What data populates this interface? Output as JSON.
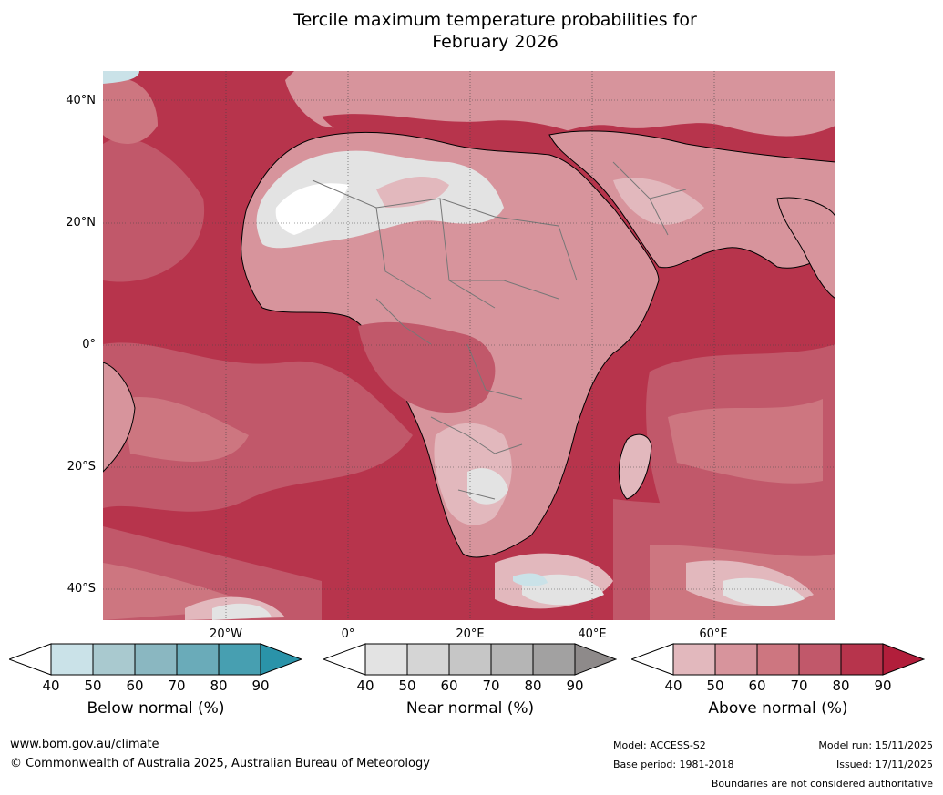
{
  "title": {
    "line1": "Tercile maximum temperature probabilities for",
    "line2": "February 2026"
  },
  "axes": {
    "lat_labels": [
      "40°N",
      "20°N",
      "0°",
      "20°S",
      "40°S"
    ],
    "lon_labels": [
      "20°W",
      "0°",
      "20°E",
      "40°E",
      "60°E"
    ]
  },
  "colorbars": [
    {
      "label": "Below normal (%)",
      "ticks": [
        "40",
        "50",
        "60",
        "70",
        "80",
        "90"
      ],
      "colors": [
        "#ffffff",
        "#cae2e8",
        "#a9c9cf",
        "#8ab7c1",
        "#6aabb9",
        "#479fb1",
        "#2a93a9"
      ]
    },
    {
      "label": "Near normal (%)",
      "ticks": [
        "40",
        "50",
        "60",
        "70",
        "80",
        "90"
      ],
      "colors": [
        "#ffffff",
        "#e3e3e3",
        "#d5d5d5",
        "#c6c6c6",
        "#b5b5b5",
        "#a2a1a1",
        "#8e8a8a"
      ]
    },
    {
      "label": "Above normal (%)",
      "ticks": [
        "40",
        "50",
        "60",
        "70",
        "80",
        "90"
      ],
      "colors": [
        "#ffffff",
        "#e2b8bd",
        "#d7949c",
        "#cd7680",
        "#c1586a",
        "#b7344c",
        "#b21e3b"
      ]
    }
  ],
  "footer": {
    "website": "www.bom.gov.au/climate",
    "copyright": "© Commonwealth of Australia 2025, Australian Bureau of Meteorology",
    "model": "Model: ACCESS-S2",
    "base_period": "Base period: 1981-2018",
    "model_run": "Model run: 15/11/2025",
    "issued": "Issued: 17/11/2025",
    "disclaimer": "Boundaries are not considered authoritative"
  }
}
